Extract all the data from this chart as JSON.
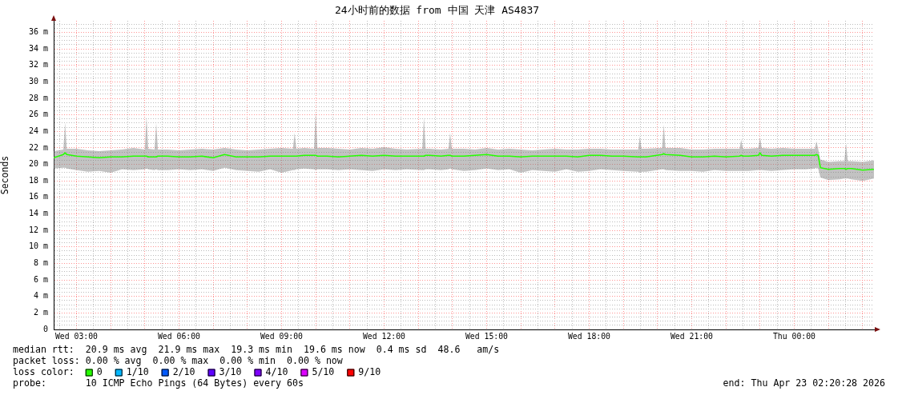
{
  "chart_data": {
    "type": "line",
    "title": "24小时前的数据 from 中国 天津 AS4837",
    "ylabel": "Seconds",
    "legend_title": "loss color:",
    "legend": "bottom",
    "grid": true,
    "annotations": [
      "median rtt:  20.9 ms avg  21.9 ms max  19.3 ms min  19.6 ms now  0.4 ms sd  48.6   am/s",
      "packet loss: 0.00 % avg  0.00 % max  0.00 % min  0.00 % now",
      "probe:       10 ICMP Echo Pings (64 Bytes) every 60s",
      "end: Thu Apr 23 02:20:28 2026"
    ],
    "xlim": [
      "2026-04-22T02:20",
      "2026-04-23T02:20"
    ],
    "ylim": [
      0,
      37.4
    ],
    "xticks": [
      {
        "value": "2026-04-22T02:30",
        "label": null
      },
      {
        "value": "2026-04-22T03:00",
        "label": "Wed 03:00"
      },
      {
        "value": "2026-04-22T03:30",
        "label": null
      },
      {
        "value": "2026-04-22T04:00",
        "label": null
      },
      {
        "value": "2026-04-22T04:30",
        "label": null
      },
      {
        "value": "2026-04-22T05:00",
        "label": null
      },
      {
        "value": "2026-04-22T05:30",
        "label": null
      },
      {
        "value": "2026-04-22T06:00",
        "label": "Wed 06:00"
      },
      {
        "value": "2026-04-22T06:30",
        "label": null
      },
      {
        "value": "2026-04-22T07:00",
        "label": null
      },
      {
        "value": "2026-04-22T07:30",
        "label": null
      },
      {
        "value": "2026-04-22T08:00",
        "label": null
      },
      {
        "value": "2026-04-22T08:30",
        "label": null
      },
      {
        "value": "2026-04-22T09:00",
        "label": "Wed 09:00"
      },
      {
        "value": "2026-04-22T09:30",
        "label": null
      },
      {
        "value": "2026-04-22T10:00",
        "label": null
      },
      {
        "value": "2026-04-22T10:30",
        "label": null
      },
      {
        "value": "2026-04-22T11:00",
        "label": null
      },
      {
        "value": "2026-04-22T11:30",
        "label": null
      },
      {
        "value": "2026-04-22T12:00",
        "label": "Wed 12:00"
      },
      {
        "value": "2026-04-22T12:30",
        "label": null
      },
      {
        "value": "2026-04-22T13:00",
        "label": null
      },
      {
        "value": "2026-04-22T13:30",
        "label": null
      },
      {
        "value": "2026-04-22T14:00",
        "label": null
      },
      {
        "value": "2026-04-22T14:30",
        "label": null
      },
      {
        "value": "2026-04-22T15:00",
        "label": "Wed 15:00"
      },
      {
        "value": "2026-04-22T15:30",
        "label": null
      },
      {
        "value": "2026-04-22T16:00",
        "label": null
      },
      {
        "value": "2026-04-22T16:30",
        "label": null
      },
      {
        "value": "2026-04-22T17:00",
        "label": null
      },
      {
        "value": "2026-04-22T17:30",
        "label": null
      },
      {
        "value": "2026-04-22T18:00",
        "label": "Wed 18:00"
      },
      {
        "value": "2026-04-22T18:30",
        "label": null
      },
      {
        "value": "2026-04-22T19:00",
        "label": null
      },
      {
        "value": "2026-04-22T19:30",
        "label": null
      },
      {
        "value": "2026-04-22T20:00",
        "label": null
      },
      {
        "value": "2026-04-22T20:30",
        "label": null
      },
      {
        "value": "2026-04-22T21:00",
        "label": "Wed 21:00"
      },
      {
        "value": "2026-04-22T21:30",
        "label": null
      },
      {
        "value": "2026-04-22T22:00",
        "label": null
      },
      {
        "value": "2026-04-22T22:30",
        "label": null
      },
      {
        "value": "2026-04-22T23:00",
        "label": null
      },
      {
        "value": "2026-04-22T23:30",
        "label": null
      },
      {
        "value": "2026-04-23T00:00",
        "label": "Thu 00:00"
      },
      {
        "value": "2026-04-23T00:30",
        "label": null
      },
      {
        "value": "2026-04-23T01:00",
        "label": null
      },
      {
        "value": "2026-04-23T01:30",
        "label": null
      },
      {
        "value": "2026-04-23T02:00",
        "label": null
      }
    ],
    "yticks": [
      0,
      {
        "value": 0.5,
        "label": null
      },
      {
        "value": 1,
        "label": null
      },
      {
        "value": 1.5,
        "label": null
      },
      {
        "value": 2,
        "label": "2 m"
      },
      {
        "value": 2.5,
        "label": null
      },
      {
        "value": 3,
        "label": null
      },
      {
        "value": 3.5,
        "label": null
      },
      {
        "value": 4,
        "label": "4 m"
      },
      {
        "value": 4.5,
        "label": null
      },
      {
        "value": 5,
        "label": null
      },
      {
        "value": 5.5,
        "label": null
      },
      {
        "value": 6,
        "label": "6 m"
      },
      {
        "value": 6.5,
        "label": null
      },
      {
        "value": 7,
        "label": null
      },
      {
        "value": 7.5,
        "label": null
      },
      {
        "value": 8,
        "label": "8 m"
      },
      {
        "value": 8.5,
        "label": null
      },
      {
        "value": 9,
        "label": null
      },
      {
        "value": 9.5,
        "label": null
      },
      {
        "value": 10,
        "label": "10 m"
      },
      {
        "value": 10.5,
        "label": null
      },
      {
        "value": 11,
        "label": null
      },
      {
        "value": 11.5,
        "label": null
      },
      {
        "value": 12,
        "label": "12 m"
      },
      {
        "value": 12.5,
        "label": null
      },
      {
        "value": 13,
        "label": null
      },
      {
        "value": 13.5,
        "label": null
      },
      {
        "value": 14,
        "label": "14 m"
      },
      {
        "value": 14.5,
        "label": null
      },
      {
        "value": 15,
        "label": null
      },
      {
        "value": 15.5,
        "label": null
      },
      {
        "value": 16,
        "label": "16 m"
      },
      {
        "value": 16.5,
        "label": null
      },
      {
        "value": 17,
        "label": null
      },
      {
        "value": 17.5,
        "label": null
      },
      {
        "value": 18,
        "label": "18 m"
      },
      {
        "value": 18.5,
        "label": null
      },
      {
        "value": 19,
        "label": null
      },
      {
        "value": 19.5,
        "label": null
      },
      {
        "value": 20,
        "label": "20 m"
      },
      {
        "value": 20.5,
        "label": null
      },
      {
        "value": 21,
        "label": null
      },
      {
        "value": 21.5,
        "label": null
      },
      {
        "value": 22,
        "label": "22 m"
      },
      {
        "value": 22.5,
        "label": null
      },
      {
        "value": 23,
        "label": null
      },
      {
        "value": 23.5,
        "label": null
      },
      {
        "value": 24,
        "label": "24 m"
      },
      {
        "value": 24.5,
        "label": null
      },
      {
        "value": 25,
        "label": null
      },
      {
        "value": 25.5,
        "label": null
      },
      {
        "value": 26,
        "label": "26 m"
      },
      {
        "value": 26.5,
        "label": null
      },
      {
        "value": 27,
        "label": null
      },
      {
        "value": 27.5,
        "label": null
      },
      {
        "value": 28,
        "label": "28 m"
      },
      {
        "value": 28.5,
        "label": null
      },
      {
        "value": 29,
        "label": null
      },
      {
        "value": 29.5,
        "label": null
      },
      {
        "value": 30,
        "label": "30 m"
      },
      {
        "value": 30.5,
        "label": null
      },
      {
        "value": 31,
        "label": null
      },
      {
        "value": 31.5,
        "label": null
      },
      {
        "value": 32,
        "label": "32 m"
      },
      {
        "value": 32.5,
        "label": null
      },
      {
        "value": 33,
        "label": null
      },
      {
        "value": 33.5,
        "label": null
      },
      {
        "value": 34,
        "label": "34 m"
      },
      {
        "value": 34.5,
        "label": null
      },
      {
        "value": 35,
        "label": null
      },
      {
        "value": 35.5,
        "label": null
      },
      {
        "value": 36,
        "label": "36 m"
      },
      {
        "value": 36.5,
        "label": null
      },
      {
        "value": 37,
        "label": null
      }
    ],
    "x": [
      "2026-04-22T02:20",
      "2026-04-22T02:37",
      "2026-04-22T02:40",
      "2026-04-22T02:43",
      "2026-04-22T03:00",
      "2026-04-22T03:20",
      "2026-04-22T03:40",
      "2026-04-22T04:00",
      "2026-04-22T04:20",
      "2026-04-22T04:40",
      "2026-04-22T05:00",
      "2026-04-22T05:03",
      "2026-04-22T05:06",
      "2026-04-22T05:17",
      "2026-04-22T05:20",
      "2026-04-22T05:23",
      "2026-04-22T05:40",
      "2026-04-22T06:00",
      "2026-04-22T06:20",
      "2026-04-22T06:40",
      "2026-04-22T07:00",
      "2026-04-22T07:20",
      "2026-04-22T07:40",
      "2026-04-22T08:00",
      "2026-04-22T08:20",
      "2026-04-22T08:40",
      "2026-04-22T09:00",
      "2026-04-22T09:20",
      "2026-04-22T09:23",
      "2026-04-22T09:26",
      "2026-04-22T09:40",
      "2026-04-22T09:57",
      "2026-04-22T10:00",
      "2026-04-22T10:03",
      "2026-04-22T10:20",
      "2026-04-22T10:40",
      "2026-04-22T11:00",
      "2026-04-22T11:20",
      "2026-04-22T11:40",
      "2026-04-22T12:00",
      "2026-04-22T12:20",
      "2026-04-22T12:40",
      "2026-04-22T13:07",
      "2026-04-22T13:10",
      "2026-04-22T13:13",
      "2026-04-22T13:20",
      "2026-04-22T13:40",
      "2026-04-22T13:53",
      "2026-04-22T13:56",
      "2026-04-22T13:59",
      "2026-04-22T14:20",
      "2026-04-22T14:40",
      "2026-04-22T15:00",
      "2026-04-22T15:20",
      "2026-04-22T15:40",
      "2026-04-22T16:00",
      "2026-04-22T16:20",
      "2026-04-22T16:40",
      "2026-04-22T17:00",
      "2026-04-22T17:20",
      "2026-04-22T17:40",
      "2026-04-22T18:00",
      "2026-04-22T18:20",
      "2026-04-22T18:40",
      "2026-04-22T19:00",
      "2026-04-22T19:26",
      "2026-04-22T19:29",
      "2026-04-22T19:32",
      "2026-04-22T19:40",
      "2026-04-22T20:08",
      "2026-04-22T20:11",
      "2026-04-22T20:14",
      "2026-04-22T20:40",
      "2026-04-22T21:00",
      "2026-04-22T21:20",
      "2026-04-22T21:40",
      "2026-04-22T22:00",
      "2026-04-22T22:24",
      "2026-04-22T22:27",
      "2026-04-22T22:30",
      "2026-04-22T22:40",
      "2026-04-22T22:57",
      "2026-04-22T23:00",
      "2026-04-22T23:03",
      "2026-04-22T23:20",
      "2026-04-22T23:40",
      "2026-04-23T00:00",
      "2026-04-23T00:20",
      "2026-04-23T00:36",
      "2026-04-23T00:39",
      "2026-04-23T00:42",
      "2026-04-23T00:46",
      "2026-04-23T01:00",
      "2026-04-23T01:20",
      "2026-04-23T01:28",
      "2026-04-23T01:31",
      "2026-04-23T01:34",
      "2026-04-23T01:40",
      "2026-04-23T02:00",
      "2026-04-23T02:20"
    ],
    "series": [
      {
        "name": "0",
        "color": "#26ff00",
        "values": [
          20.8,
          21.2,
          21.4,
          21.2,
          21.0,
          20.9,
          20.8,
          20.9,
          20.9,
          21.0,
          21.0,
          21.0,
          20.9,
          20.9,
          20.9,
          21.0,
          21.0,
          20.9,
          20.9,
          21.0,
          20.8,
          21.2,
          20.9,
          20.9,
          20.9,
          21.0,
          21.0,
          21.0,
          21.0,
          21.0,
          21.1,
          21.1,
          21.1,
          21.0,
          21.0,
          20.9,
          21.0,
          21.1,
          21.0,
          21.1,
          21.0,
          21.0,
          21.0,
          21.0,
          21.1,
          21.1,
          21.0,
          21.1,
          21.1,
          21.0,
          21.0,
          21.1,
          21.2,
          21.0,
          21.0,
          20.9,
          21.0,
          21.0,
          21.0,
          21.0,
          20.9,
          21.1,
          21.1,
          21.0,
          21.0,
          20.9,
          20.9,
          20.9,
          20.9,
          21.2,
          21.3,
          21.2,
          21.1,
          20.9,
          20.9,
          21.0,
          20.9,
          21.0,
          21.1,
          21.0,
          21.0,
          21.1,
          21.4,
          21.1,
          21.0,
          21.1,
          21.1,
          21.1,
          21.1,
          21.2,
          21.1,
          19.6,
          19.4,
          19.5,
          19.5,
          19.4,
          19.5,
          19.5,
          19.3,
          19.4
        ],
        "lower": [
          19.5,
          19.6,
          19.6,
          19.5,
          19.3,
          19.1,
          19.2,
          19.0,
          19.4,
          19.3,
          19.4,
          19.5,
          19.4,
          19.3,
          19.4,
          19.3,
          19.3,
          19.4,
          19.3,
          19.4,
          19.2,
          19.6,
          19.3,
          19.2,
          19.1,
          19.4,
          19.0,
          19.3,
          19.3,
          19.4,
          19.5,
          19.4,
          19.3,
          19.4,
          19.4,
          19.3,
          19.4,
          19.3,
          19.2,
          19.4,
          19.3,
          19.4,
          19.3,
          19.3,
          19.4,
          19.4,
          19.3,
          19.4,
          19.5,
          19.4,
          19.2,
          19.3,
          19.5,
          19.3,
          19.4,
          19.0,
          19.3,
          19.2,
          19.1,
          19.4,
          19.1,
          19.2,
          19.4,
          19.3,
          19.2,
          19.1,
          19.0,
          19.1,
          19.1,
          19.4,
          19.4,
          19.3,
          19.2,
          19.2,
          19.1,
          19.3,
          19.2,
          19.2,
          19.2,
          19.2,
          19.2,
          19.3,
          19.3,
          19.3,
          19.2,
          19.3,
          19.4,
          19.4,
          19.5,
          19.6,
          19.5,
          18.4,
          18.1,
          18.2,
          18.3,
          18.3,
          18.3,
          18.2,
          18.0,
          18.3
        ],
        "upper": [
          21.6,
          21.8,
          25.1,
          21.9,
          21.9,
          21.7,
          21.6,
          21.7,
          21.8,
          22.0,
          21.8,
          25.8,
          21.9,
          21.8,
          25.0,
          21.8,
          21.8,
          21.7,
          21.8,
          21.9,
          21.8,
          22.0,
          21.8,
          21.7,
          21.8,
          21.9,
          22.0,
          21.9,
          23.8,
          21.9,
          22.0,
          21.9,
          26.5,
          22.0,
          22.0,
          21.9,
          21.8,
          22.0,
          21.9,
          22.1,
          21.9,
          21.8,
          21.9,
          25.7,
          21.9,
          21.9,
          21.8,
          21.9,
          23.8,
          21.9,
          21.9,
          21.8,
          22.0,
          21.8,
          21.9,
          21.8,
          21.7,
          21.8,
          21.9,
          21.8,
          21.8,
          21.9,
          21.9,
          21.8,
          21.8,
          21.8,
          23.4,
          21.9,
          21.9,
          22.0,
          24.8,
          22.0,
          22.0,
          21.8,
          21.8,
          21.9,
          21.9,
          21.9,
          23.0,
          21.9,
          21.9,
          22.0,
          23.3,
          22.0,
          21.9,
          22.0,
          21.9,
          21.9,
          21.9,
          22.8,
          21.9,
          20.6,
          20.3,
          20.4,
          20.4,
          22.6,
          20.4,
          20.4,
          20.3,
          20.5
        ]
      },
      {
        "name": "1/10",
        "color": "#00b8ff",
        "values": [
          null,
          null,
          null,
          null,
          null,
          null,
          null,
          null,
          null,
          null,
          null,
          null,
          null,
          null,
          null,
          null,
          null,
          null,
          null,
          null,
          null,
          null,
          null,
          null,
          null,
          null,
          null,
          null,
          null,
          null,
          null,
          null,
          null,
          null,
          null,
          null,
          null,
          null,
          null,
          null,
          null,
          null,
          null,
          null,
          null,
          null,
          null,
          null,
          null,
          null,
          null,
          null,
          null,
          null,
          null,
          null,
          null,
          null,
          null,
          null,
          null,
          null,
          null,
          null,
          null,
          null,
          null,
          null,
          null,
          null,
          null,
          null,
          null,
          null,
          null,
          null,
          null,
          null,
          null,
          null,
          null,
          null,
          null,
          null,
          null,
          null,
          null,
          null,
          null,
          null,
          null,
          null,
          null,
          null,
          null,
          null,
          null,
          null,
          null,
          null
        ]
      },
      {
        "name": "2/10",
        "color": "#0059ff",
        "values": [
          null,
          null,
          null,
          null,
          null,
          null,
          null,
          null,
          null,
          null,
          null,
          null,
          null,
          null,
          null,
          null,
          null,
          null,
          null,
          null,
          null,
          null,
          null,
          null,
          null,
          null,
          null,
          null,
          null,
          null,
          null,
          null,
          null,
          null,
          null,
          null,
          null,
          null,
          null,
          null,
          null,
          null,
          null,
          null,
          null,
          null,
          null,
          null,
          null,
          null,
          null,
          null,
          null,
          null,
          null,
          null,
          null,
          null,
          null,
          null,
          null,
          null,
          null,
          null,
          null,
          null,
          null,
          null,
          null,
          null,
          null,
          null,
          null,
          null,
          null,
          null,
          null,
          null,
          null,
          null,
          null,
          null,
          null,
          null,
          null,
          null,
          null,
          null,
          null,
          null,
          null,
          null,
          null,
          null,
          null,
          null,
          null,
          null,
          null,
          null
        ]
      },
      {
        "name": "3/10",
        "color": "#5e00ff",
        "values": [
          null,
          null,
          null,
          null,
          null,
          null,
          null,
          null,
          null,
          null,
          null,
          null,
          null,
          null,
          null,
          null,
          null,
          null,
          null,
          null,
          null,
          null,
          null,
          null,
          null,
          null,
          null,
          null,
          null,
          null,
          null,
          null,
          null,
          null,
          null,
          null,
          null,
          null,
          null,
          null,
          null,
          null,
          null,
          null,
          null,
          null,
          null,
          null,
          null,
          null,
          null,
          null,
          null,
          null,
          null,
          null,
          null,
          null,
          null,
          null,
          null,
          null,
          null,
          null,
          null,
          null,
          null,
          null,
          null,
          null,
          null,
          null,
          null,
          null,
          null,
          null,
          null,
          null,
          null,
          null,
          null,
          null,
          null,
          null,
          null,
          null,
          null,
          null,
          null,
          null,
          null,
          null,
          null,
          null,
          null,
          null,
          null,
          null,
          null,
          null
        ]
      },
      {
        "name": "4/10",
        "color": "#7e00ff",
        "values": [
          null,
          null,
          null,
          null,
          null,
          null,
          null,
          null,
          null,
          null,
          null,
          null,
          null,
          null,
          null,
          null,
          null,
          null,
          null,
          null,
          null,
          null,
          null,
          null,
          null,
          null,
          null,
          null,
          null,
          null,
          null,
          null,
          null,
          null,
          null,
          null,
          null,
          null,
          null,
          null,
          null,
          null,
          null,
          null,
          null,
          null,
          null,
          null,
          null,
          null,
          null,
          null,
          null,
          null,
          null,
          null,
          null,
          null,
          null,
          null,
          null,
          null,
          null,
          null,
          null,
          null,
          null,
          null,
          null,
          null,
          null,
          null,
          null,
          null,
          null,
          null,
          null,
          null,
          null,
          null,
          null,
          null,
          null,
          null,
          null,
          null,
          null,
          null,
          null,
          null,
          null,
          null,
          null,
          null,
          null,
          null,
          null,
          null,
          null,
          null
        ]
      },
      {
        "name": "5/10",
        "color": "#dd00ff",
        "values": [
          null,
          null,
          null,
          null,
          null,
          null,
          null,
          null,
          null,
          null,
          null,
          null,
          null,
          null,
          null,
          null,
          null,
          null,
          null,
          null,
          null,
          null,
          null,
          null,
          null,
          null,
          null,
          null,
          null,
          null,
          null,
          null,
          null,
          null,
          null,
          null,
          null,
          null,
          null,
          null,
          null,
          null,
          null,
          null,
          null,
          null,
          null,
          null,
          null,
          null,
          null,
          null,
          null,
          null,
          null,
          null,
          null,
          null,
          null,
          null,
          null,
          null,
          null,
          null,
          null,
          null,
          null,
          null,
          null,
          null,
          null,
          null,
          null,
          null,
          null,
          null,
          null,
          null,
          null,
          null,
          null,
          null,
          null,
          null,
          null,
          null,
          null,
          null,
          null,
          null,
          null,
          null,
          null,
          null,
          null,
          null,
          null,
          null,
          null,
          null
        ]
      },
      {
        "name": "9/10",
        "color": "#ff0000",
        "values": [
          null,
          null,
          null,
          null,
          null,
          null,
          null,
          null,
          null,
          null,
          null,
          null,
          null,
          null,
          null,
          null,
          null,
          null,
          null,
          null,
          null,
          null,
          null,
          null,
          null,
          null,
          null,
          null,
          null,
          null,
          null,
          null,
          null,
          null,
          null,
          null,
          null,
          null,
          null,
          null,
          null,
          null,
          null,
          null,
          null,
          null,
          null,
          null,
          null,
          null,
          null,
          null,
          null,
          null,
          null,
          null,
          null,
          null,
          null,
          null,
          null,
          null,
          null,
          null,
          null,
          null,
          null,
          null,
          null,
          null,
          null,
          null,
          null,
          null,
          null,
          null,
          null,
          null,
          null,
          null,
          null,
          null,
          null,
          null,
          null,
          null,
          null,
          null,
          null,
          null,
          null,
          null,
          null,
          null,
          null,
          null,
          null,
          null,
          null,
          null
        ]
      }
    ]
  }
}
